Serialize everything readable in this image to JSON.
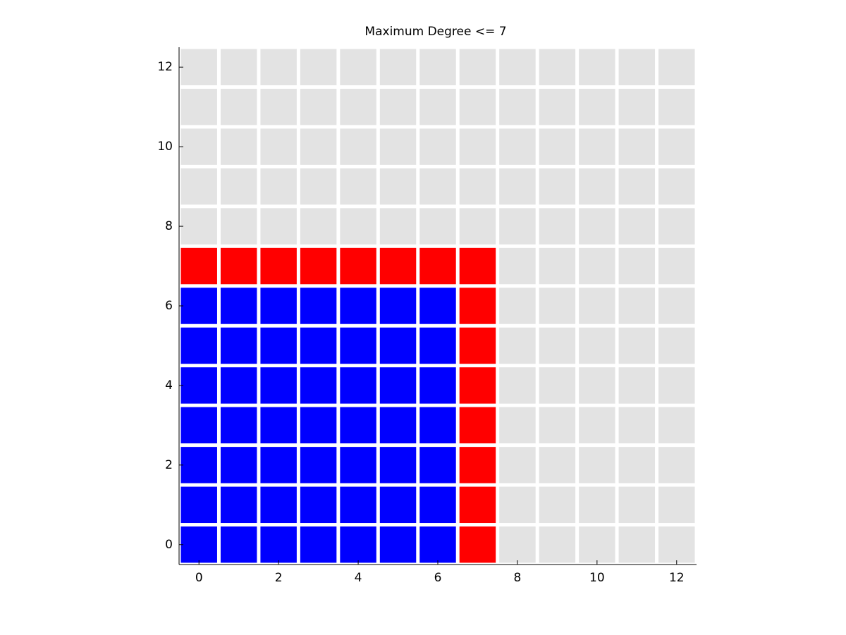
{
  "chart_data": {
    "type": "heatmap",
    "title": "Maximum Degree <= 7",
    "x": [
      0,
      1,
      2,
      3,
      4,
      5,
      6,
      7,
      8,
      9,
      10,
      11,
      12
    ],
    "y": [
      0,
      1,
      2,
      3,
      4,
      5,
      6,
      7,
      8,
      9,
      10,
      11,
      12
    ],
    "values": [
      [
        0,
        0,
        0,
        0,
        0,
        0,
        0,
        1,
        2,
        2,
        2,
        2,
        2
      ],
      [
        0,
        0,
        0,
        0,
        0,
        0,
        0,
        1,
        2,
        2,
        2,
        2,
        2
      ],
      [
        0,
        0,
        0,
        0,
        0,
        0,
        0,
        1,
        2,
        2,
        2,
        2,
        2
      ],
      [
        0,
        0,
        0,
        0,
        0,
        0,
        0,
        1,
        2,
        2,
        2,
        2,
        2
      ],
      [
        0,
        0,
        0,
        0,
        0,
        0,
        0,
        1,
        2,
        2,
        2,
        2,
        2
      ],
      [
        0,
        0,
        0,
        0,
        0,
        0,
        0,
        1,
        2,
        2,
        2,
        2,
        2
      ],
      [
        0,
        0,
        0,
        0,
        0,
        0,
        0,
        1,
        2,
        2,
        2,
        2,
        2
      ],
      [
        1,
        1,
        1,
        1,
        1,
        1,
        1,
        1,
        2,
        2,
        2,
        2,
        2
      ],
      [
        2,
        2,
        2,
        2,
        2,
        2,
        2,
        2,
        2,
        2,
        2,
        2,
        2
      ],
      [
        2,
        2,
        2,
        2,
        2,
        2,
        2,
        2,
        2,
        2,
        2,
        2,
        2
      ],
      [
        2,
        2,
        2,
        2,
        2,
        2,
        2,
        2,
        2,
        2,
        2,
        2,
        2
      ],
      [
        2,
        2,
        2,
        2,
        2,
        2,
        2,
        2,
        2,
        2,
        2,
        2,
        2
      ],
      [
        2,
        2,
        2,
        2,
        2,
        2,
        2,
        2,
        2,
        2,
        2,
        2,
        2
      ]
    ],
    "colors": [
      "#0000ff",
      "#ff0000",
      "#e3e3e3"
    ],
    "xlim": [
      -0.5,
      12.5
    ],
    "ylim": [
      -0.5,
      12.5
    ],
    "xticks": [
      0,
      2,
      4,
      6,
      8,
      10,
      12
    ],
    "yticks": [
      0,
      2,
      4,
      6,
      8,
      10,
      12
    ]
  }
}
